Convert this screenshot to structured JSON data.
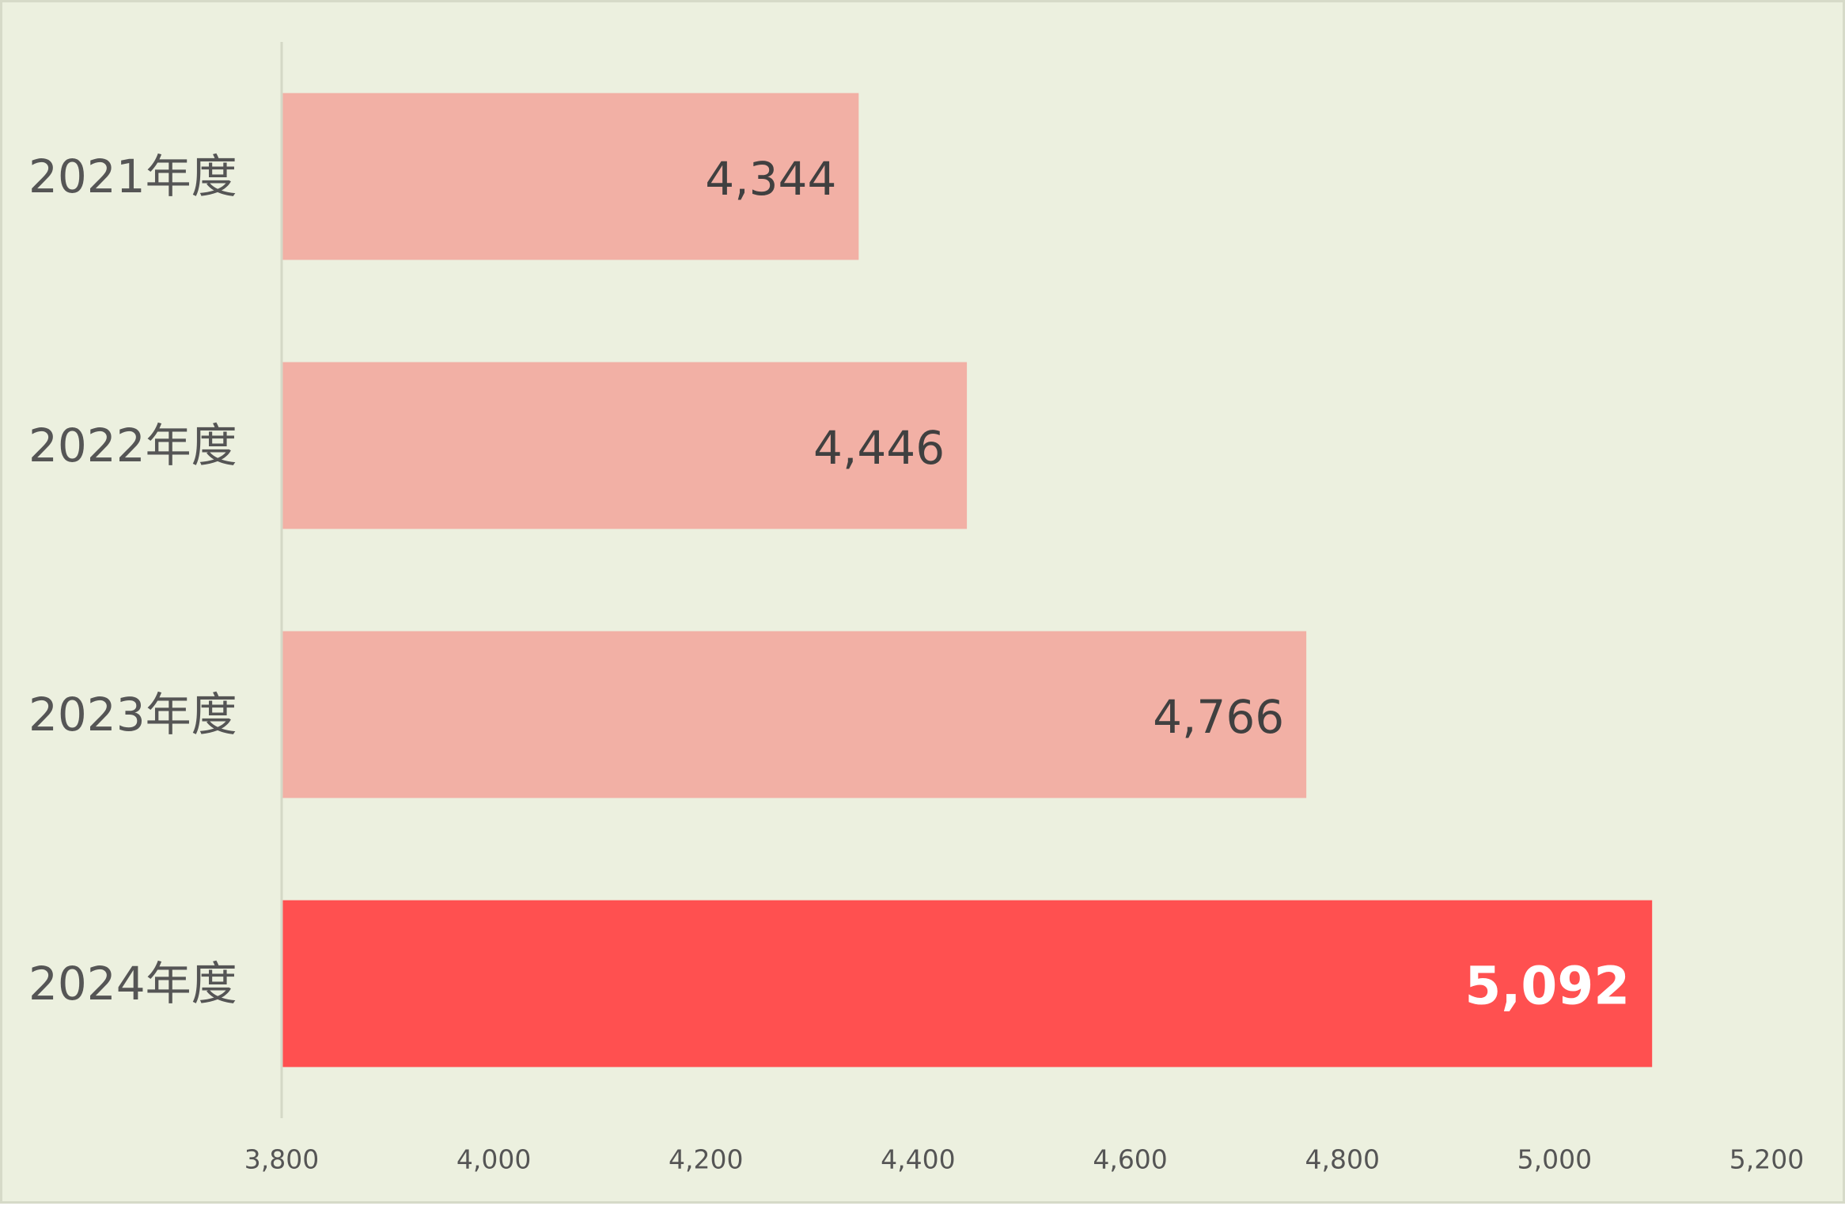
{
  "chart_data": {
    "type": "bar",
    "orientation": "horizontal",
    "title": "",
    "xlabel": "",
    "ylabel": "",
    "categories": [
      "2021年度",
      "2022年度",
      "2023年度",
      "2024年度"
    ],
    "values": [
      4344,
      4446,
      4766,
      5092
    ],
    "data_labels": [
      "4,344",
      "4,446",
      "4,766",
      "5,092"
    ],
    "highlighted_index": 3,
    "xlim": [
      3800,
      5200
    ],
    "x_ticks": [
      3800,
      4000,
      4200,
      4400,
      4600,
      4800,
      5000,
      5200
    ],
    "x_tick_labels": [
      "3,800",
      "4,000",
      "4,200",
      "4,400",
      "4,600",
      "4,800",
      "5,000",
      "5,200"
    ],
    "grid": false,
    "legend": "none",
    "colors": {
      "background": "#ecf0df",
      "bar": "#f2b0a5",
      "bar_highlight": "#ff5050",
      "axis": "#d4d8c6",
      "label_text": "#555555",
      "data_label_text": "#404040",
      "highlight_label_text": "#ffffff"
    }
  }
}
